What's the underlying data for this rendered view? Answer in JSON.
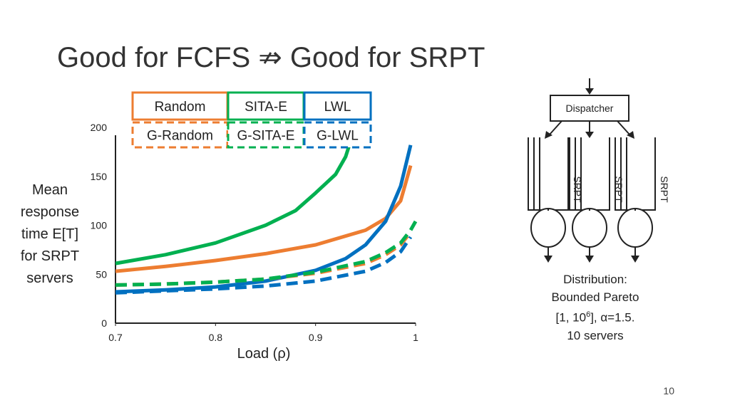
{
  "slide": {
    "title": "Good for FCFS ⇏ Good for SRPT",
    "page_number": "10"
  },
  "diagram": {
    "dispatcher_label": "Dispatcher",
    "server_label": "SRPT",
    "distribution_lines": [
      "Distribution:",
      "Bounded Pareto",
      "[1, 10",
      "6",
      "], α=1.5.",
      "10 servers"
    ]
  },
  "colors": {
    "random": "#ED7D31",
    "sita": "#00B050",
    "lwl": "#0070C0"
  },
  "chart_data": {
    "type": "line",
    "xlabel": "Load (ρ)",
    "ylabel_lines": [
      "Mean",
      "response",
      "time E[T]",
      "for SRPT",
      "servers"
    ],
    "xlim": [
      0.7,
      1.0
    ],
    "ylim": [
      0,
      200
    ],
    "xticks": [
      0.7,
      0.8,
      0.9,
      1.0
    ],
    "xtick_labels": [
      "0.7",
      "0.8",
      "0.9",
      "1"
    ],
    "yticks": [
      0,
      50,
      100,
      150,
      200
    ],
    "ytick_labels": [
      "0",
      "50",
      "100",
      "150",
      "200"
    ],
    "legend_position": "top",
    "series": [
      {
        "name": "Random",
        "color": "#ED7D31",
        "dash": "solid",
        "x": [
          0.7,
          0.75,
          0.8,
          0.85,
          0.9,
          0.95,
          0.97,
          0.985,
          0.995
        ],
        "y": [
          53,
          58,
          64,
          71,
          80,
          95,
          107,
          125,
          161
        ]
      },
      {
        "name": "SITA-E",
        "color": "#00B050",
        "dash": "solid",
        "x": [
          0.7,
          0.75,
          0.8,
          0.85,
          0.88,
          0.9,
          0.92,
          0.93,
          0.935
        ],
        "y": [
          61,
          70,
          82,
          100,
          115,
          133,
          152,
          170,
          186
        ]
      },
      {
        "name": "LWL",
        "color": "#0070C0",
        "dash": "solid",
        "x": [
          0.7,
          0.75,
          0.8,
          0.85,
          0.9,
          0.93,
          0.95,
          0.97,
          0.985,
          0.995
        ],
        "y": [
          32,
          34,
          37,
          43,
          54,
          66,
          80,
          104,
          140,
          182
        ]
      },
      {
        "name": "G-Random",
        "color": "#ED7D31",
        "dash": "dashed",
        "x": [
          0.7,
          0.75,
          0.8,
          0.85,
          0.9,
          0.95,
          0.97,
          0.985,
          0.995
        ],
        "y": [
          39,
          40,
          42,
          45,
          51,
          61,
          70,
          80,
          93
        ]
      },
      {
        "name": "G-SITA-E",
        "color": "#00B050",
        "dash": "dashed",
        "x": [
          0.7,
          0.75,
          0.8,
          0.85,
          0.9,
          0.95,
          0.97,
          0.985,
          0.995,
          1.0
        ],
        "y": [
          39,
          40,
          42,
          45,
          52,
          63,
          72,
          82,
          95,
          104
        ]
      },
      {
        "name": "G-LWL",
        "color": "#0070C0",
        "dash": "dashed",
        "x": [
          0.7,
          0.75,
          0.8,
          0.85,
          0.9,
          0.95,
          0.97,
          0.985,
          0.995
        ],
        "y": [
          31,
          33,
          35,
          38,
          43,
          53,
          62,
          73,
          88
        ]
      }
    ],
    "legend": [
      {
        "label": "Random",
        "color": "#ED7D31",
        "dash": "solid"
      },
      {
        "label": "SITA-E",
        "color": "#00B050",
        "dash": "solid"
      },
      {
        "label": "LWL",
        "color": "#0070C0",
        "dash": "solid"
      },
      {
        "label": "G-Random",
        "color": "#ED7D31",
        "dash": "dashed"
      },
      {
        "label": "G-SITA-E",
        "color": "#00B050",
        "dash": "dashed"
      },
      {
        "label": "G-LWL",
        "color": "#0070C0",
        "dash": "dashed"
      }
    ]
  }
}
